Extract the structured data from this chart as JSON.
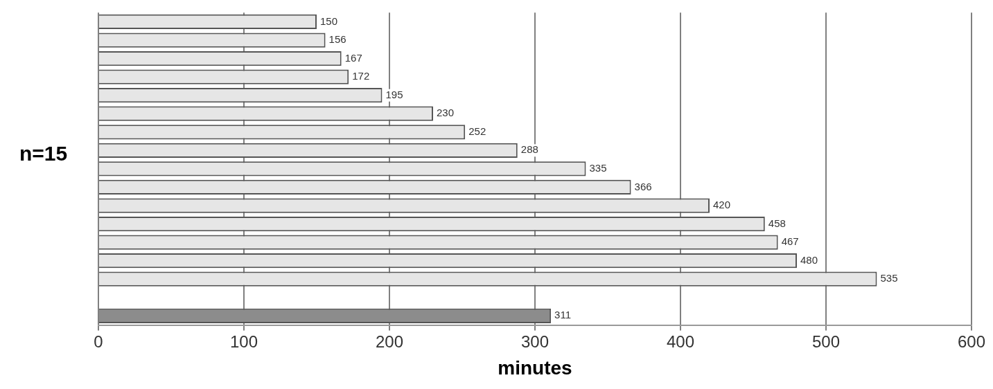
{
  "chart_data": {
    "type": "bar",
    "orientation": "horizontal",
    "xlabel": "minutes",
    "categories": [
      null,
      null,
      null,
      null,
      null,
      null,
      null,
      null,
      null,
      null,
      null,
      null,
      null,
      null,
      null,
      null,
      null
    ],
    "values": [
      150,
      156,
      167,
      172,
      195,
      230,
      252,
      288,
      335,
      366,
      420,
      458,
      467,
      480,
      535,
      null,
      311
    ],
    "colors": [
      "#e6e6e6",
      "#e6e6e6",
      "#e6e6e6",
      "#e6e6e6",
      "#e6e6e6",
      "#e6e6e6",
      "#e6e6e6",
      "#e6e6e6",
      "#e6e6e6",
      "#e6e6e6",
      "#e6e6e6",
      "#e6e6e6",
      "#e6e6e6",
      "#e6e6e6",
      "#e6e6e6",
      "#e6e6e6",
      "#8c8c8c"
    ],
    "xlim": [
      0,
      600
    ],
    "xticks": [
      0,
      100,
      200,
      300,
      400,
      500,
      600
    ],
    "grid": "x",
    "data_labels": true,
    "annotations": [
      "n=15"
    ]
  }
}
